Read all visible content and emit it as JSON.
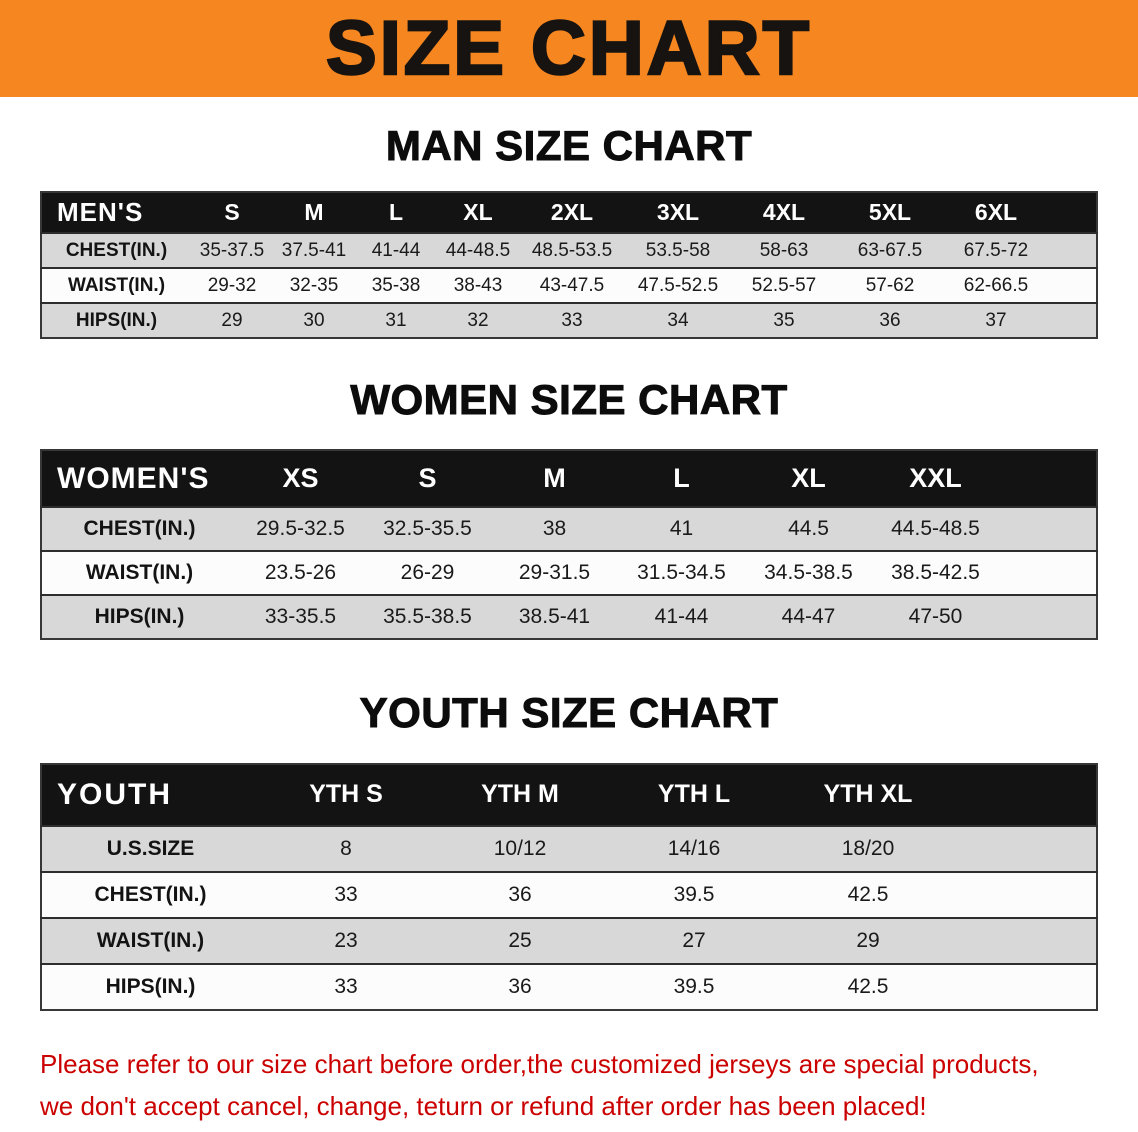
{
  "banner": {
    "title": "SIZE CHART"
  },
  "colors": {
    "banner_bg": "#f6861f",
    "header_row_bg": "#131313",
    "row_alt_bg": "#d8d8d8",
    "row_bg": "#fcfcfc",
    "disclaimer_text": "#cb0000"
  },
  "sections": [
    {
      "heading": "MAN SIZE CHART",
      "table": {
        "header": [
          "MEN'S",
          "S",
          "M",
          "L",
          "XL",
          "2XL",
          "3XL",
          "4XL",
          "5XL",
          "6XL"
        ],
        "rows": [
          {
            "label": "CHEST(IN.)",
            "values": [
              "35-37.5",
              "37.5-41",
              "41-44",
              "44-48.5",
              "48.5-53.5",
              "53.5-58",
              "58-63",
              "63-67.5",
              "67.5-72"
            ]
          },
          {
            "label": "WAIST(IN.)",
            "values": [
              "29-32",
              "32-35",
              "35-38",
              "38-43",
              "43-47.5",
              "47.5-52.5",
              "52.5-57",
              "57-62",
              "62-66.5"
            ]
          },
          {
            "label": "HIPS(IN.)",
            "values": [
              "29",
              "30",
              "31",
              "32",
              "33",
              "34",
              "35",
              "36",
              "37"
            ]
          }
        ]
      }
    },
    {
      "heading": "WOMEN SIZE CHART",
      "table": {
        "header": [
          "WOMEN'S",
          "XS",
          "S",
          "M",
          "L",
          "XL",
          "XXL"
        ],
        "rows": [
          {
            "label": "CHEST(IN.)",
            "values": [
              "29.5-32.5",
              "32.5-35.5",
              "38",
              "41",
              "44.5",
              "44.5-48.5"
            ]
          },
          {
            "label": "WAIST(IN.)",
            "values": [
              "23.5-26",
              "26-29",
              "29-31.5",
              "31.5-34.5",
              "34.5-38.5",
              "38.5-42.5"
            ]
          },
          {
            "label": "HIPS(IN.)",
            "values": [
              "33-35.5",
              "35.5-38.5",
              "38.5-41",
              "41-44",
              "44-47",
              "47-50"
            ]
          }
        ]
      }
    },
    {
      "heading": "YOUTH SIZE CHART",
      "table": {
        "header": [
          "YOUTH",
          "YTH S",
          "YTH M",
          "YTH L",
          "YTH XL"
        ],
        "rows": [
          {
            "label": "U.S.SIZE",
            "values": [
              "8",
              "10/12",
              "14/16",
              "18/20"
            ]
          },
          {
            "label": "CHEST(IN.)",
            "values": [
              "33",
              "36",
              "39.5",
              "42.5"
            ]
          },
          {
            "label": "WAIST(IN.)",
            "values": [
              "23",
              "25",
              "27",
              "29"
            ]
          },
          {
            "label": "HIPS(IN.)",
            "values": [
              "33",
              "36",
              "39.5",
              "42.5"
            ]
          }
        ]
      }
    }
  ],
  "disclaimer": {
    "line1": "Please refer to our size chart before order,the customized jerseys are special products,",
    "line2": "we don't accept cancel, change, teturn or refund after order has been placed!"
  }
}
